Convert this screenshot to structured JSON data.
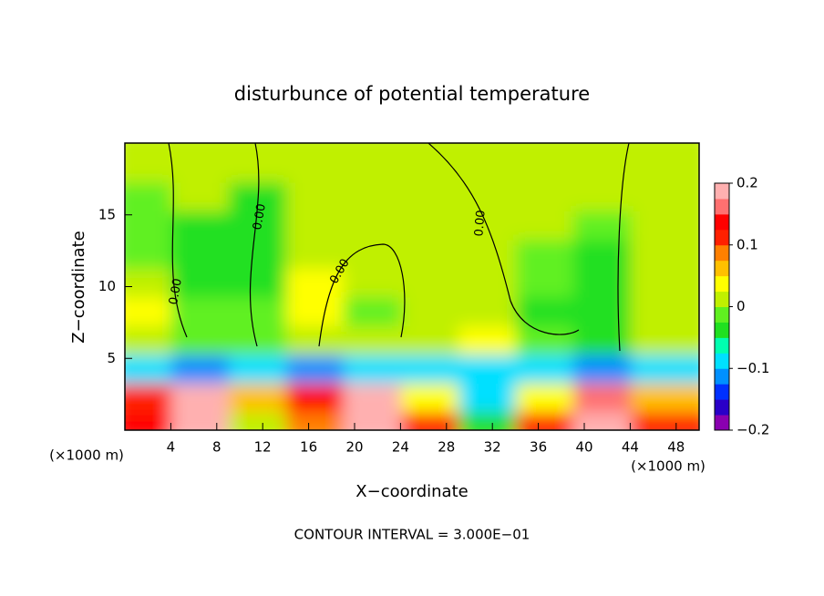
{
  "chart_data": {
    "type": "heatmap",
    "title": "disturbunce of potential temperature",
    "x_label": "X−coordinate",
    "y_label": "Z−coordinate",
    "x_unit_left": "(×1000 m)",
    "x_unit_right": "(×1000 m)",
    "footnote": "CONTOUR INTERVAL = 3.000E−01",
    "contour_labels": [
      "0.00",
      "0.00",
      "0.00",
      "0.00"
    ],
    "x": [
      2.5,
      7.5,
      12.5,
      17.5,
      22.5,
      27.5,
      32.5,
      37.5,
      42.5,
      47.5
    ],
    "y": [
      1,
      3,
      5,
      7,
      9,
      11,
      13,
      15,
      17,
      19
    ],
    "values": [
      [
        0.15,
        0.2,
        0.02,
        0.08,
        0.2,
        0.1,
        -0.05,
        0.1,
        0.2,
        0.12
      ],
      [
        0.12,
        0.2,
        0.05,
        0.15,
        0.18,
        0.04,
        -0.08,
        0.03,
        0.16,
        0.06
      ],
      [
        -0.1,
        -0.12,
        -0.1,
        -0.12,
        -0.1,
        -0.1,
        -0.1,
        -0.1,
        -0.12,
        -0.1
      ],
      [
        0.02,
        -0.01,
        -0.02,
        0.02,
        0.01,
        0.02,
        0.04,
        -0.02,
        -0.05,
        0.02
      ],
      [
        0.03,
        -0.02,
        -0.02,
        0.03,
        -0.01,
        0.01,
        0,
        -0.03,
        -0.05,
        0.01
      ],
      [
        0.02,
        -0.03,
        -0.03,
        0.03,
        0,
        0,
        0,
        -0.02,
        -0.04,
        0.01
      ],
      [
        -0.02,
        -0.04,
        -0.04,
        0.01,
        0,
        0,
        0,
        -0.01,
        -0.03,
        0
      ],
      [
        -0.02,
        -0.04,
        -0.05,
        0,
        0,
        0,
        0,
        0,
        -0.02,
        0
      ],
      [
        -0.02,
        0,
        -0.03,
        0,
        0,
        0,
        0,
        0,
        0,
        0
      ],
      [
        0.01,
        0.01,
        0.01,
        0.01,
        0.01,
        0.01,
        0.01,
        0.01,
        0.01,
        0.01
      ]
    ],
    "xlim": [
      0,
      50
    ],
    "xticks": [
      4,
      8,
      12,
      16,
      20,
      24,
      28,
      32,
      36,
      40,
      44,
      48
    ],
    "ylim": [
      0,
      20
    ],
    "yticks": [
      5,
      10,
      15
    ],
    "clim": [
      -0.2,
      0.2
    ],
    "cticks": [
      {
        "value": -0.2,
        "label": "−0.2"
      },
      {
        "value": -0.1,
        "label": "−0.1"
      },
      0,
      0.1,
      0.2
    ],
    "colors": [
      "#8a00b0",
      "#2a00c8",
      "#0030ff",
      "#0090ff",
      "#00e0ff",
      "#00ffb0",
      "#20e020",
      "#60f020",
      "#c0f000",
      "#ffff00",
      "#ffc000",
      "#ff8000",
      "#ff2000",
      "#ff0000",
      "#ff7070",
      "#ffb0b0"
    ]
  }
}
